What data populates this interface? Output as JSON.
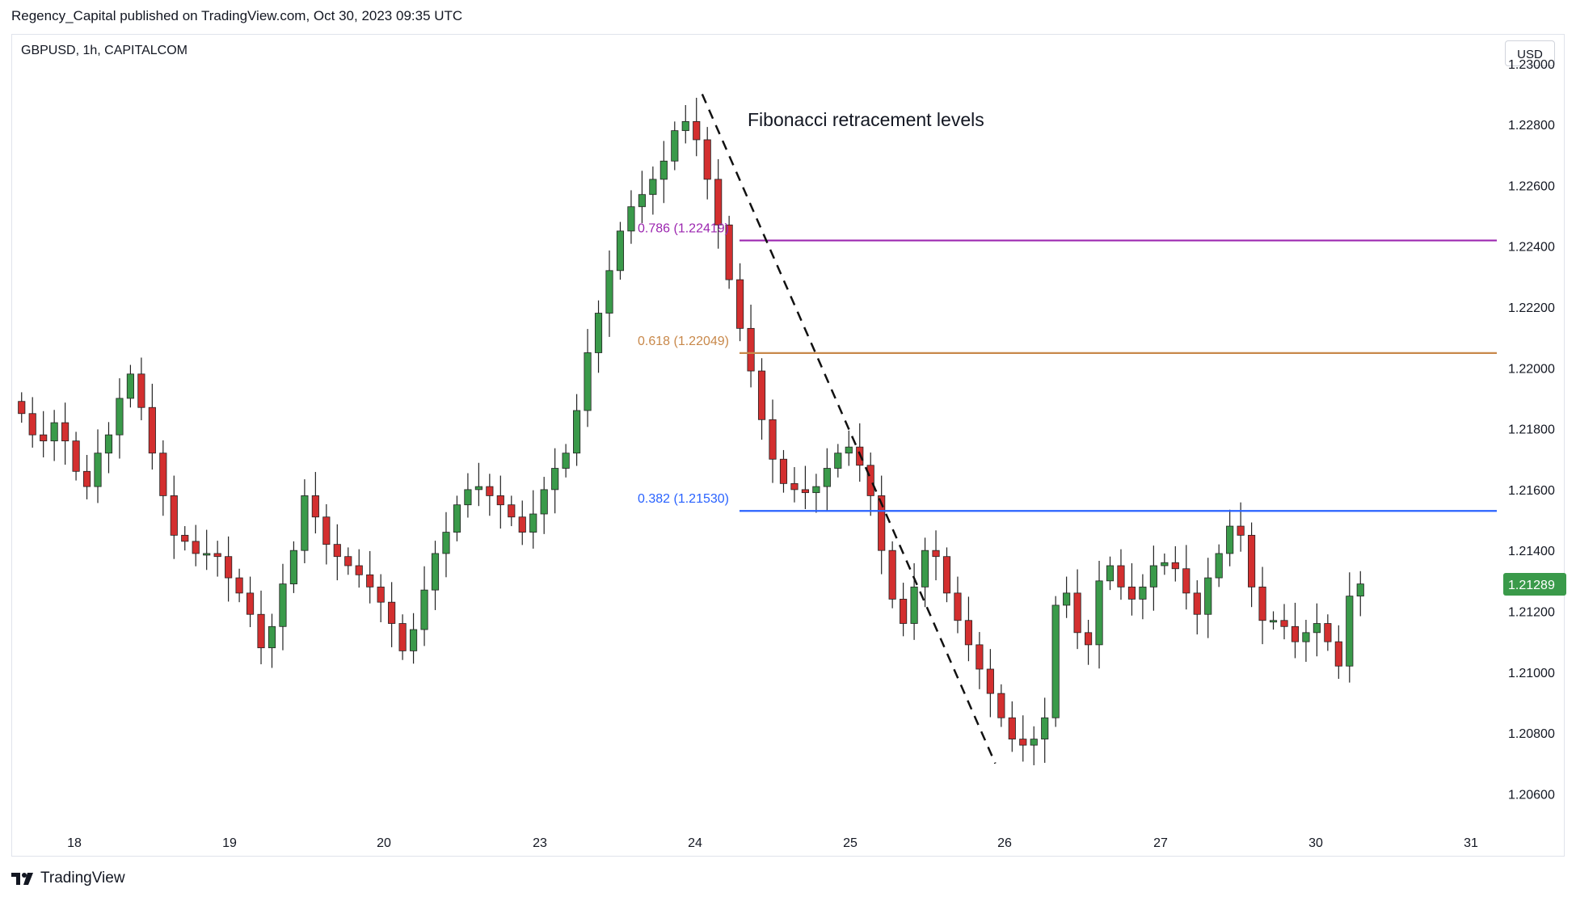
{
  "header": {
    "published_line": "Regency_Capital published on TradingView.com, Oct 30, 2023 09:35 UTC",
    "symbol_line": "GBPUSD, 1h, CAPITALCOM",
    "currency_button": "USD"
  },
  "footer": {
    "brand": "TradingView",
    "logo_icon": "tradingview-logo-icon"
  },
  "colors": {
    "up": "#26a69a",
    "up_body": "#3a9a4a",
    "down": "#d32f2f",
    "level_0786": "#9c27b0",
    "level_0618": "#c8884a",
    "level_0382": "#2962ff",
    "price_tag": "#3a9a4a"
  },
  "chart_data": {
    "type": "candlestick",
    "symbol": "GBPUSD",
    "timeframe": "1h",
    "ylim": [
      1.205,
      1.2305
    ],
    "y_ticks": [
      "1.23000",
      "1.22800",
      "1.22600",
      "1.22400",
      "1.22200",
      "1.22000",
      "1.21800",
      "1.21600",
      "1.21400",
      "1.21200",
      "1.21000",
      "1.20800",
      "1.20600"
    ],
    "x_ticks": [
      "18",
      "19",
      "20",
      "23",
      "24",
      "25",
      "26",
      "27",
      "30",
      "31"
    ],
    "current_price": "1.21289",
    "fib_levels": [
      {
        "ratio": "0.786",
        "value": 1.22419,
        "label": "0.786 (1.22419)",
        "color": "#9c27b0"
      },
      {
        "ratio": "0.618",
        "value": 1.22049,
        "label": "0.618 (1.22049)",
        "color": "#c8884a"
      },
      {
        "ratio": "0.382",
        "value": 1.2153,
        "label": "0.382 (1.21530)",
        "color": "#2962ff"
      }
    ],
    "trend_line": {
      "from": [
        0.4645,
        1.229
      ],
      "to": [
        0.662,
        1.207
      ]
    },
    "annotation": "Fibonacci retracement levels",
    "candles_close": [
      1.2185,
      1.2178,
      1.2176,
      1.2182,
      1.2176,
      1.2166,
      1.2161,
      1.2172,
      1.2178,
      1.219,
      1.2198,
      1.2187,
      1.2172,
      1.2158,
      1.2145,
      1.2143,
      1.2139,
      1.2139,
      1.2138,
      1.2131,
      1.2126,
      1.2119,
      1.2108,
      1.2115,
      1.2129,
      1.214,
      1.2158,
      1.2151,
      1.2142,
      1.2138,
      1.2135,
      1.2132,
      1.2128,
      1.2123,
      1.2116,
      1.2107,
      1.2114,
      1.2127,
      1.2139,
      1.2146,
      1.2155,
      1.216,
      1.2161,
      1.2158,
      1.2155,
      1.2151,
      1.2146,
      1.2152,
      1.216,
      1.2167,
      1.2172,
      1.2186,
      1.2205,
      1.2218,
      1.2232,
      1.2245,
      1.2253,
      1.2257,
      1.2262,
      1.2268,
      1.2278,
      1.2281,
      1.2275,
      1.2262,
      1.2247,
      1.2229,
      1.2213,
      1.2199,
      1.2183,
      1.217,
      1.2162,
      1.216,
      1.2159,
      1.2161,
      1.2167,
      1.2172,
      1.2174,
      1.2168,
      1.2158,
      1.214,
      1.2124,
      1.2116,
      1.2128,
      1.214,
      1.2138,
      1.2126,
      1.2117,
      1.2109,
      1.2101,
      1.2093,
      1.2085,
      1.2078,
      1.2076,
      1.2078,
      1.2085,
      1.2122,
      1.2126,
      1.2113,
      1.2109,
      1.213,
      1.2135,
      1.2128,
      1.2124,
      1.2128,
      1.2135,
      1.2136,
      1.2134,
      1.2126,
      1.2119,
      1.2131,
      1.2139,
      1.2148,
      1.2145,
      1.2128,
      1.2117,
      1.2117,
      1.2115,
      1.211,
      1.2113,
      1.2116,
      1.211,
      1.2102,
      1.2125,
      1.2129
    ]
  }
}
